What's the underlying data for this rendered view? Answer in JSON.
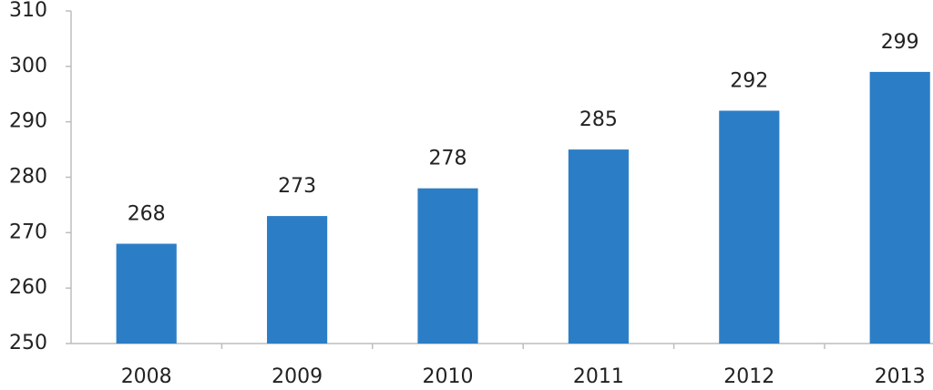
{
  "chart_data": {
    "type": "bar",
    "categories": [
      "2008",
      "2009",
      "2010",
      "2011",
      "2012",
      "2013"
    ],
    "values": [
      268,
      273,
      278,
      285,
      292,
      299
    ],
    "color": "#2b7ec6",
    "ylim": [
      250,
      310
    ],
    "yticks": [
      250,
      260,
      270,
      280,
      290,
      300,
      310
    ],
    "grid": false
  }
}
